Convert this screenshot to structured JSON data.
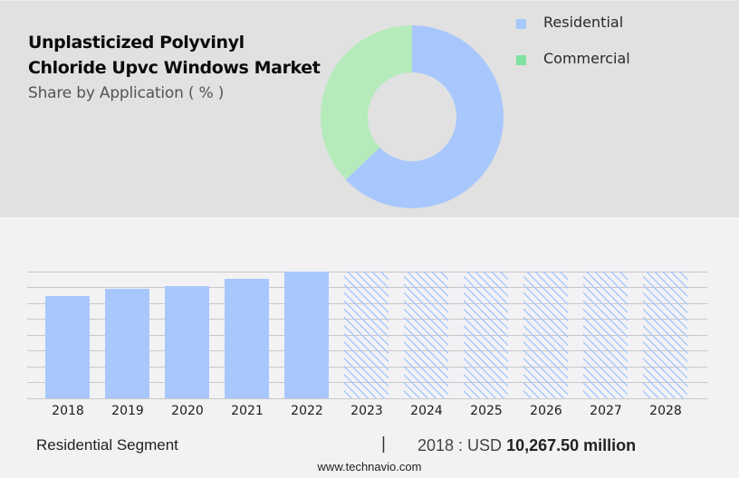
{
  "header": {
    "title": "Unplasticized Polyvinyl Chloride Upvc Windows Market",
    "subtitle": "Share by Application ( % )"
  },
  "legend": [
    {
      "label": "Residential",
      "color": "#a8c8fd"
    },
    {
      "label": "Commercial",
      "color": "#7ee2a0"
    }
  ],
  "footer": {
    "segment": "Residential Segment",
    "divider": "|",
    "value_prefix": "2018 : USD ",
    "value_bold": "10,267.50 million",
    "site": "www.technavio.com"
  },
  "chart_data": [
    {
      "type": "pie",
      "subtype": "donut",
      "title": "Unplasticized Polyvinyl Chloride Upvc Windows Market",
      "subtitle": "Share by Application ( % )",
      "categories": [
        "Residential",
        "Commercial"
      ],
      "values": [
        64,
        36
      ],
      "colors": [
        "#a8c8fd",
        "#b5ebbb"
      ],
      "legend_position": "right"
    },
    {
      "type": "bar",
      "title": "Residential Segment",
      "categories": [
        "2018",
        "2019",
        "2020",
        "2021",
        "2022",
        "2023",
        "2024",
        "2025",
        "2026",
        "2027",
        "2028"
      ],
      "values": [
        10267.5,
        10990,
        11260,
        11980,
        12720,
        null,
        null,
        null,
        null,
        null,
        null
      ],
      "forecast_years": [
        "2023",
        "2024",
        "2025",
        "2026",
        "2027",
        "2028"
      ],
      "annotation": "2018 : USD 10,267.50 million",
      "xlabel": "",
      "ylabel": "",
      "ylim": [
        0,
        12720
      ],
      "grid": true,
      "bar_color": "#a8c8fd",
      "forecast_style": "hatched"
    }
  ],
  "bars": [
    {
      "year": "2018",
      "height": 113,
      "kind": "actual"
    },
    {
      "year": "2019",
      "height": 121,
      "kind": "actual"
    },
    {
      "year": "2020",
      "height": 124,
      "kind": "actual"
    },
    {
      "year": "2021",
      "height": 132,
      "kind": "actual"
    },
    {
      "year": "2022",
      "height": 140,
      "kind": "actual"
    },
    {
      "year": "2023",
      "height": 140,
      "kind": "forecast"
    },
    {
      "year": "2024",
      "height": 140,
      "kind": "forecast"
    },
    {
      "year": "2025",
      "height": 140,
      "kind": "forecast"
    },
    {
      "year": "2026",
      "height": 140,
      "kind": "forecast"
    },
    {
      "year": "2027",
      "height": 140,
      "kind": "forecast"
    },
    {
      "year": "2028",
      "height": 140,
      "kind": "forecast"
    }
  ]
}
